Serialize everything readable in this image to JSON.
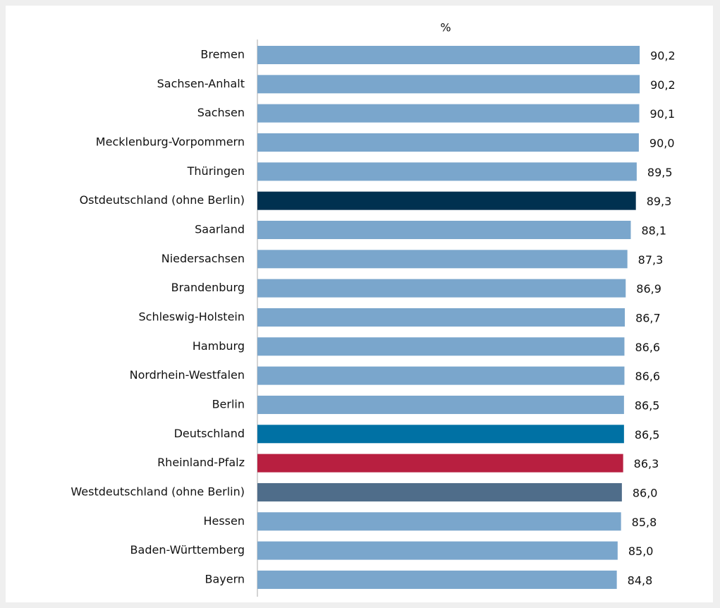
{
  "chart_data": {
    "type": "barh",
    "title": "%",
    "categories": [
      "Bremen",
      "Sachsen-Anhalt",
      "Sachsen",
      "Mecklenburg-Vorpommern",
      "Thüringen",
      "Ostdeutschland (ohne Berlin)",
      "Saarland",
      "Niedersachsen",
      "Brandenburg",
      "Schleswig-Holstein",
      "Hamburg",
      "Nordrhein-Westfalen",
      "Berlin",
      "Deutschland",
      "Rheinland-Pfalz",
      "Westdeutschland (ohne Berlin)",
      "Hessen",
      "Baden-Württemberg",
      "Bayern"
    ],
    "values": [
      90.2,
      90.2,
      90.1,
      90.0,
      89.5,
      89.3,
      88.1,
      87.3,
      86.9,
      86.7,
      86.6,
      86.6,
      86.5,
      86.5,
      86.3,
      86.0,
      85.8,
      85.0,
      84.8
    ],
    "value_labels": [
      "90,2",
      "90,2",
      "90,1",
      "90,0",
      "89,5",
      "89,3",
      "88,1",
      "87,3",
      "86,9",
      "86,7",
      "86,6",
      "86,6",
      "86,5",
      "86,5",
      "86,3",
      "86,0",
      "85,8",
      "85,0",
      "84,8"
    ],
    "colors": [
      "#7aa6cc",
      "#7aa6cc",
      "#7aa6cc",
      "#7aa6cc",
      "#7aa6cc",
      "#003150",
      "#7aa6cc",
      "#7aa6cc",
      "#7aa6cc",
      "#7aa6cc",
      "#7aa6cc",
      "#7aa6cc",
      "#7aa6cc",
      "#0071a4",
      "#b81f40",
      "#4f6d8a",
      "#7aa6cc",
      "#7aa6cc",
      "#7aa6cc"
    ],
    "xlim": [
      0,
      100
    ]
  }
}
